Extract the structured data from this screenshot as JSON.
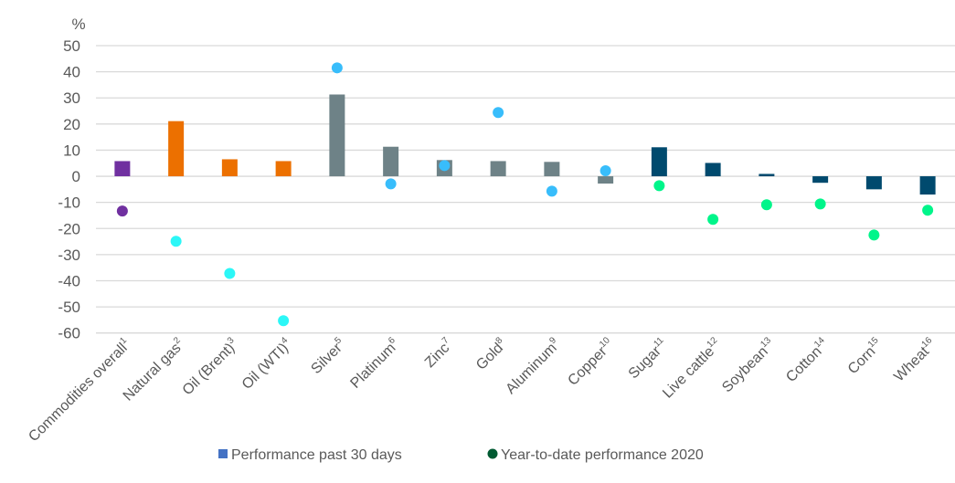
{
  "chart_data": {
    "type": "bar+scatter",
    "ylabel": "%",
    "ylim": [
      -60,
      50
    ],
    "yticks": [
      50,
      40,
      30,
      20,
      10,
      0,
      -10,
      -20,
      -30,
      -40,
      -50,
      -60
    ],
    "grid": true,
    "legend_position": "bottom",
    "categories": [
      {
        "label": "Commodities overall",
        "sup": "1"
      },
      {
        "label": "Natural gas",
        "sup": "2"
      },
      {
        "label": "Oil (Brent)",
        "sup": "3"
      },
      {
        "label": "Oil (WTI)",
        "sup": "4"
      },
      {
        "label": "Silver",
        "sup": "5"
      },
      {
        "label": "Platinum",
        "sup": "6"
      },
      {
        "label": "Zinc",
        "sup": "7"
      },
      {
        "label": "Gold",
        "sup": "8"
      },
      {
        "label": "Aluminum",
        "sup": "9"
      },
      {
        "label": "Copper",
        "sup": "10"
      },
      {
        "label": "Sugar",
        "sup": "11"
      },
      {
        "label": "Live cattle",
        "sup": "12"
      },
      {
        "label": "Soybean",
        "sup": "13"
      },
      {
        "label": "Cotton",
        "sup": "14"
      },
      {
        "label": "Corn",
        "sup": "15"
      },
      {
        "label": "Wheat",
        "sup": "16"
      }
    ],
    "series": [
      {
        "name": "Performance past 30 days",
        "kind": "bar",
        "legend_color": "#4472C4",
        "values": [
          5.8,
          21.1,
          6.5,
          5.8,
          31.3,
          11.3,
          6.2,
          5.8,
          5.5,
          -2.8,
          11.1,
          5.1,
          0.9,
          -2.5,
          -5.0,
          -7.0
        ],
        "colors": [
          "#7030A0",
          "#EC7000",
          "#EC7000",
          "#EC7000",
          "#6E8287",
          "#6E8287",
          "#6E8287",
          "#6E8287",
          "#6E8287",
          "#6E8287",
          "#004A6E",
          "#004A6E",
          "#004A6E",
          "#004A6E",
          "#004A6E",
          "#004A6E"
        ]
      },
      {
        "name": "Year-to-date performance 2020",
        "kind": "scatter",
        "legend_color": "#005A32",
        "values": [
          -13.3,
          -24.9,
          -37.2,
          -55.3,
          41.5,
          -2.9,
          4.1,
          24.4,
          -5.7,
          2.1,
          -3.6,
          -16.5,
          -10.9,
          -10.6,
          -22.5,
          -13.0
        ],
        "colors": [
          "#7030A0",
          "#2CF7F7",
          "#2CF7F7",
          "#2CF7F7",
          "#38BDFB",
          "#38BDFB",
          "#38BDFB",
          "#38BDFB",
          "#38BDFB",
          "#38BDFB",
          "#00F58A",
          "#00F58A",
          "#00F58A",
          "#00F58A",
          "#00F58A",
          "#00F58A"
        ]
      }
    ]
  }
}
